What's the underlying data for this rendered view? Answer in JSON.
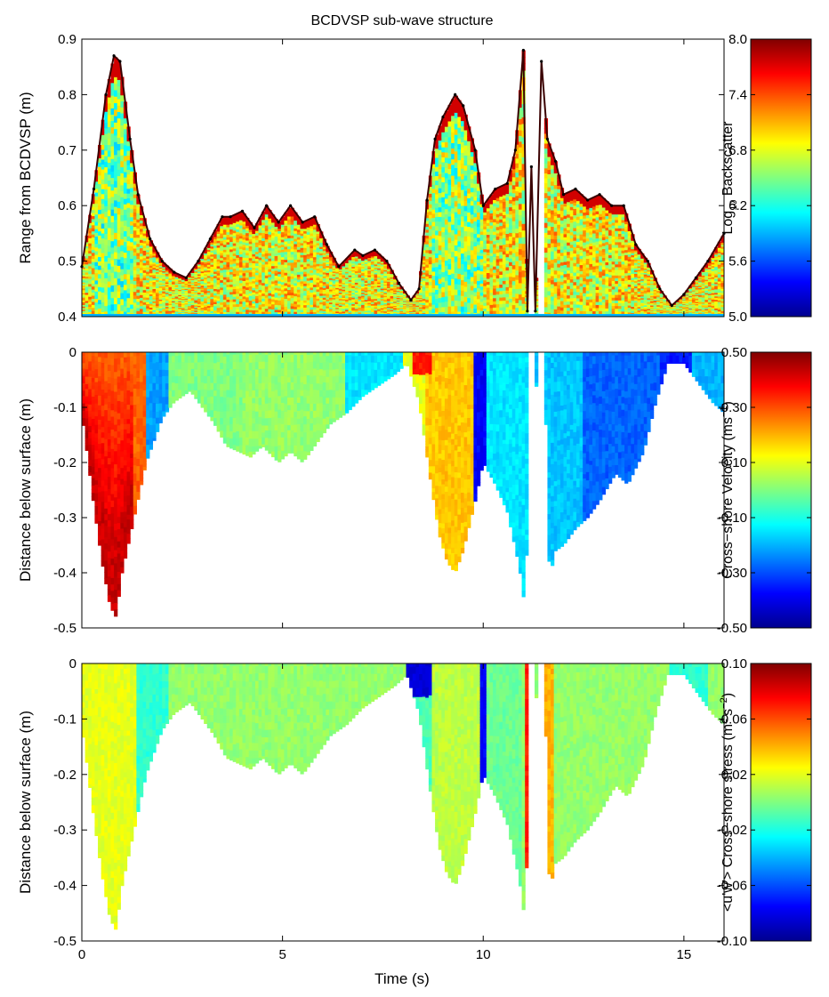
{
  "figure": {
    "title": "BCDVSP sub-wave structure",
    "xlabel": "Time (s)"
  },
  "colormap": {
    "name": "jet",
    "stops": [
      "#00008f",
      "#0000ff",
      "#0080ff",
      "#00ffff",
      "#80ff80",
      "#ffff00",
      "#ff8000",
      "#ff0000",
      "#800000"
    ]
  },
  "chart_data": [
    {
      "type": "heatmap",
      "panel": "backscatter",
      "ylabel": "Range from BCDVSP (m)",
      "xlim": [
        0,
        16
      ],
      "ylim": [
        0.4,
        0.9
      ],
      "x_ticks": [
        0,
        5,
        10,
        15
      ],
      "x_tick_labels": [
        "",
        "",
        "",
        ""
      ],
      "y_ticks": [
        0.9,
        0.8,
        0.7,
        0.6,
        0.5,
        0.4
      ],
      "y_tick_labels": [
        "0.9",
        "0.8",
        "0.7",
        "0.6",
        "0.5",
        "0.4"
      ],
      "colorbar": {
        "label": "Log10 Backscatter",
        "label_main": "Log",
        "label_sub": "10",
        "label_rest": " Backscatter",
        "range": [
          5.0,
          8.0
        ],
        "ticks": [
          "8.0",
          "7.4",
          "6.8",
          "6.2",
          "5.6",
          "5.0"
        ]
      },
      "surface_line": {
        "x": [
          0,
          0.3,
          0.6,
          0.8,
          0.95,
          1.2,
          1.4,
          1.7,
          2.0,
          2.3,
          2.6,
          2.9,
          3.2,
          3.5,
          3.7,
          4.0,
          4.3,
          4.6,
          4.9,
          5.2,
          5.5,
          5.8,
          6.1,
          6.4,
          6.8,
          7.0,
          7.3,
          7.6,
          7.9,
          8.2,
          8.4,
          8.6,
          8.8,
          9.0,
          9.3,
          9.5,
          9.8,
          10.0,
          10.3,
          10.6,
          10.8,
          11.0,
          11.1,
          11.2,
          11.3,
          11.45,
          11.6,
          11.8,
          12.0,
          12.3,
          12.6,
          12.9,
          13.2,
          13.5,
          13.8,
          14.1,
          14.4,
          14.7,
          15.0,
          15.3,
          15.6,
          16.0
        ],
        "y": [
          0.49,
          0.63,
          0.8,
          0.87,
          0.86,
          0.72,
          0.62,
          0.54,
          0.5,
          0.48,
          0.47,
          0.5,
          0.54,
          0.58,
          0.58,
          0.59,
          0.56,
          0.6,
          0.57,
          0.6,
          0.57,
          0.58,
          0.53,
          0.49,
          0.52,
          0.51,
          0.52,
          0.5,
          0.46,
          0.43,
          0.45,
          0.61,
          0.72,
          0.76,
          0.8,
          0.78,
          0.7,
          0.6,
          0.63,
          0.64,
          0.7,
          0.88,
          0.41,
          0.67,
          0.41,
          0.86,
          0.72,
          0.68,
          0.62,
          0.63,
          0.61,
          0.62,
          0.6,
          0.6,
          0.53,
          0.5,
          0.45,
          0.42,
          0.44,
          0.47,
          0.5,
          0.55
        ]
      }
    },
    {
      "type": "heatmap",
      "panel": "velocity",
      "ylabel": "Distance below surface (m)",
      "xlim": [
        0,
        16
      ],
      "ylim": [
        -0.5,
        0
      ],
      "x_ticks": [
        0,
        5,
        10,
        15
      ],
      "x_tick_labels": [
        "",
        "",
        "",
        ""
      ],
      "y_ticks": [
        0,
        -0.1,
        -0.2,
        -0.3,
        -0.4,
        -0.5
      ],
      "y_tick_labels": [
        "0",
        "-0.1",
        "-0.2",
        "-0.3",
        "-0.4",
        "-0.5"
      ],
      "colorbar": {
        "label": "Cross-shore Velocity (ms^-1)",
        "label_main": "Cross−shore Velocity (ms",
        "label_sup": "−1",
        "label_rest": ")",
        "range": [
          -0.5,
          0.5
        ],
        "ticks": [
          "0.50",
          "0.30",
          "0.10",
          "-0.10",
          "-0.30",
          "-0.50"
        ]
      }
    },
    {
      "type": "heatmap",
      "panel": "stress",
      "ylabel": "Distance below surface (m)",
      "xlim": [
        0,
        16
      ],
      "ylim": [
        -0.5,
        0
      ],
      "x_ticks": [
        0,
        5,
        10,
        15
      ],
      "x_tick_labels": [
        "0",
        "5",
        "10",
        "15"
      ],
      "y_ticks": [
        0,
        -0.1,
        -0.2,
        -0.3,
        -0.4,
        -0.5
      ],
      "y_tick_labels": [
        "0",
        "-0.1",
        "-0.2",
        "-0.3",
        "-0.4",
        "-0.5"
      ],
      "colorbar": {
        "label": "<u'w'> Cross-shore stress (m^2 s^-2)",
        "label_main": "<u'w'> Cross−shore stress (m",
        "label_sup1": "2",
        "label_mid": "s",
        "label_sup2": "−2",
        "label_rest": ")",
        "range": [
          -0.1,
          0.1
        ],
        "ticks": [
          "0.10",
          "0.06",
          "0.02",
          "-0.02",
          "-0.06",
          "-0.10"
        ]
      }
    }
  ],
  "profile": {
    "x": [
      0,
      0.3,
      0.5,
      0.7,
      0.85,
      1.0,
      1.3,
      1.6,
      2.0,
      2.3,
      2.7,
      3.0,
      3.3,
      3.6,
      3.9,
      4.2,
      4.5,
      4.9,
      5.2,
      5.5,
      5.9,
      6.2,
      6.6,
      7.0,
      7.4,
      7.8,
      8.1,
      8.4,
      8.7,
      8.9,
      9.1,
      9.3,
      9.5,
      9.8,
      10.0,
      10.3,
      10.6,
      10.9,
      11.05,
      11.1,
      11.15,
      11.25,
      11.55,
      11.65,
      11.8,
      12.0,
      12.3,
      12.6,
      12.9,
      13.3,
      13.6,
      14.0,
      14.3,
      14.6,
      15.0,
      15.4,
      15.7,
      16.0
    ],
    "depth": [
      -0.11,
      -0.28,
      -0.38,
      -0.46,
      -0.48,
      -0.4,
      -0.3,
      -0.2,
      -0.12,
      -0.09,
      -0.07,
      -0.1,
      -0.13,
      -0.17,
      -0.18,
      -0.19,
      -0.17,
      -0.2,
      -0.18,
      -0.2,
      -0.16,
      -0.13,
      -0.11,
      -0.08,
      -0.06,
      -0.04,
      -0.02,
      -0.09,
      -0.24,
      -0.33,
      -0.38,
      -0.4,
      -0.36,
      -0.27,
      -0.2,
      -0.24,
      -0.29,
      -0.39,
      -0.47,
      -0.3,
      -0.05,
      -0.05,
      -0.1,
      -0.41,
      -0.36,
      -0.35,
      -0.32,
      -0.3,
      -0.27,
      -0.22,
      -0.24,
      -0.18,
      -0.09,
      -0.02,
      -0.02,
      -0.06,
      -0.09,
      -0.11
    ]
  },
  "gaps": [
    {
      "x0": 11.12,
      "x1": 11.28
    },
    {
      "x0": 11.38,
      "x1": 11.5
    }
  ]
}
